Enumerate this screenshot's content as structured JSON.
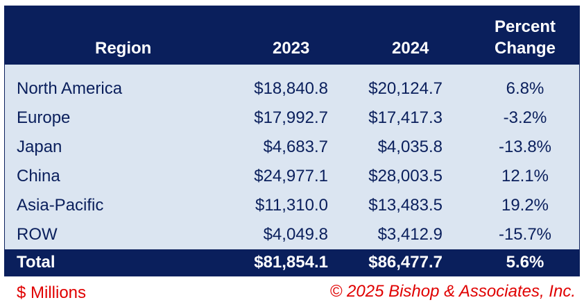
{
  "chart_data": {
    "type": "table",
    "columns": [
      "Region",
      "2023",
      "2024",
      "Percent Change"
    ],
    "header": {
      "region": "Region",
      "y2023": "2023",
      "y2024": "2024",
      "pct_line1": "Percent",
      "pct_line2": "Change"
    },
    "rows": [
      {
        "region": "North America",
        "y2023": "$18,840.8",
        "y2024": "$20,124.7",
        "pct": "6.8%"
      },
      {
        "region": "Europe",
        "y2023": "$17,992.7",
        "y2024": "$17,417.3",
        "pct": "-3.2%"
      },
      {
        "region": "Japan",
        "y2023": "$4,683.7",
        "y2024": "$4,035.8",
        "pct": "-13.8%"
      },
      {
        "region": "China",
        "y2023": "$24,977.1",
        "y2024": "$28,003.5",
        "pct": "12.1%"
      },
      {
        "region": "Asia-Pacific",
        "y2023": "$11,310.0",
        "y2024": "$13,483.5",
        "pct": "19.2%"
      },
      {
        "region": "ROW",
        "y2023": "$4,049.8",
        "y2024": "$3,412.9",
        "pct": "-15.7%"
      }
    ],
    "total": {
      "region": "Total",
      "y2023": "$81,854.1",
      "y2024": "$86,477.7",
      "pct": "5.6%"
    },
    "units_note": "$ Millions",
    "copyright": "© 2025 Bishop & Associates, Inc."
  },
  "colors": {
    "header_bg": "#0a1f5c",
    "body_bg": "#dbe5f1",
    "body_text": "#0a1f5c",
    "footer_text": "#e00000"
  }
}
